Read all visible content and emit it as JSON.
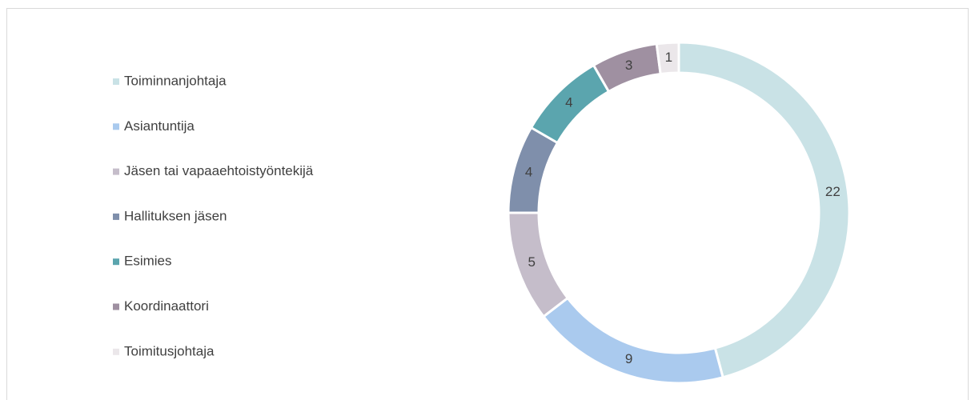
{
  "chart_data": {
    "type": "donut",
    "categories": [
      "Toiminnanjohtaja",
      "Asiantuntija",
      "Jäsen tai vapaaehtoistyöntekijä",
      "Hallituksen jäsen",
      "Esimies",
      "Koordinaattori",
      "Toimitusjohtaja"
    ],
    "values": [
      22,
      9,
      5,
      4,
      4,
      3,
      1
    ],
    "colors": [
      "#c9e2e6",
      "#aacaee",
      "#c5bdca",
      "#7f8fab",
      "#5ba5ae",
      "#9f90a1",
      "#ebe7ea"
    ],
    "legend": "left"
  }
}
